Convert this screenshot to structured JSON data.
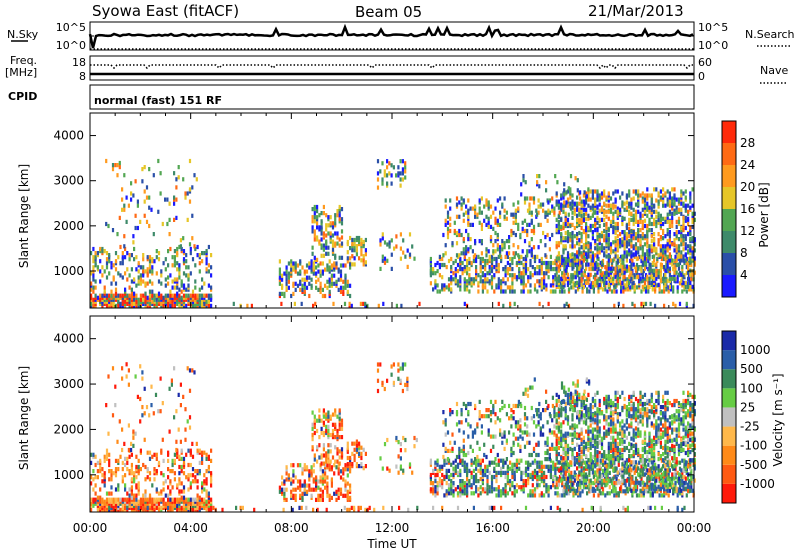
{
  "header": {
    "station": "Syowa East (fitACF)",
    "beam": "Beam 05",
    "date": "21/Mar/2013"
  },
  "aux_panels": {
    "nsky_label": "N.Sky",
    "nsky_ticks": [
      "10^5",
      "10^0"
    ],
    "nsearch_label": "N.Search",
    "nsearch_ticks": [
      "10^5",
      "10^0"
    ],
    "freq_label_1": "Freq.",
    "freq_label_2": "[MHz]",
    "freq_ticks": [
      "18",
      "8"
    ],
    "nave_label": "Nave",
    "nave_ticks": [
      "60",
      "0"
    ],
    "cpid_label": "CPID",
    "cpid_value": "normal (fast) 151 RF"
  },
  "colors": {
    "power_scale": [
      "#1a1aff",
      "#2a4fa8",
      "#3e8a6a",
      "#52a652",
      "#e6c628",
      "#ff9a1e",
      "#ff6a14",
      "#ff2a0a"
    ],
    "velocity_scale": [
      "#ff1a0a",
      "#ff5a12",
      "#ff8a18",
      "#ffb84a",
      "#c0c0c0",
      "#66cc44",
      "#3a8a5a",
      "#2a5ea8",
      "#1a2aa8"
    ]
  },
  "chart_data": [
    {
      "type": "heatmap",
      "panel": "power",
      "xlabel": "",
      "ylabel": "Slant Range [km]",
      "x_ticks": [
        "00:00",
        "04:00",
        "08:00",
        "12:00",
        "16:00",
        "20:00",
        "00:00"
      ],
      "y_ticks": [
        "1000",
        "2000",
        "3000",
        "4000"
      ],
      "ylim": [
        180,
        4500
      ],
      "xlim_hours": [
        0,
        24
      ],
      "colorbar_label": "Power [dB]",
      "colorbar_ticks": [
        "4",
        "8",
        "12",
        "16",
        "20",
        "24",
        "28"
      ],
      "colorbar_range": [
        0,
        32
      ]
    },
    {
      "type": "heatmap",
      "panel": "velocity",
      "xlabel": "Time UT",
      "ylabel": "Slant Range [km]",
      "x_ticks": [
        "00:00",
        "04:00",
        "08:00",
        "12:00",
        "16:00",
        "20:00",
        "00:00"
      ],
      "y_ticks": [
        "1000",
        "2000",
        "3000",
        "4000"
      ],
      "ylim": [
        180,
        4500
      ],
      "xlim_hours": [
        0,
        24
      ],
      "colorbar_label": "Velocity [m s⁻¹]",
      "colorbar_ticks": [
        "1000",
        "500",
        "100",
        "25",
        "-25",
        "-100",
        "-500",
        "-1000"
      ]
    }
  ]
}
